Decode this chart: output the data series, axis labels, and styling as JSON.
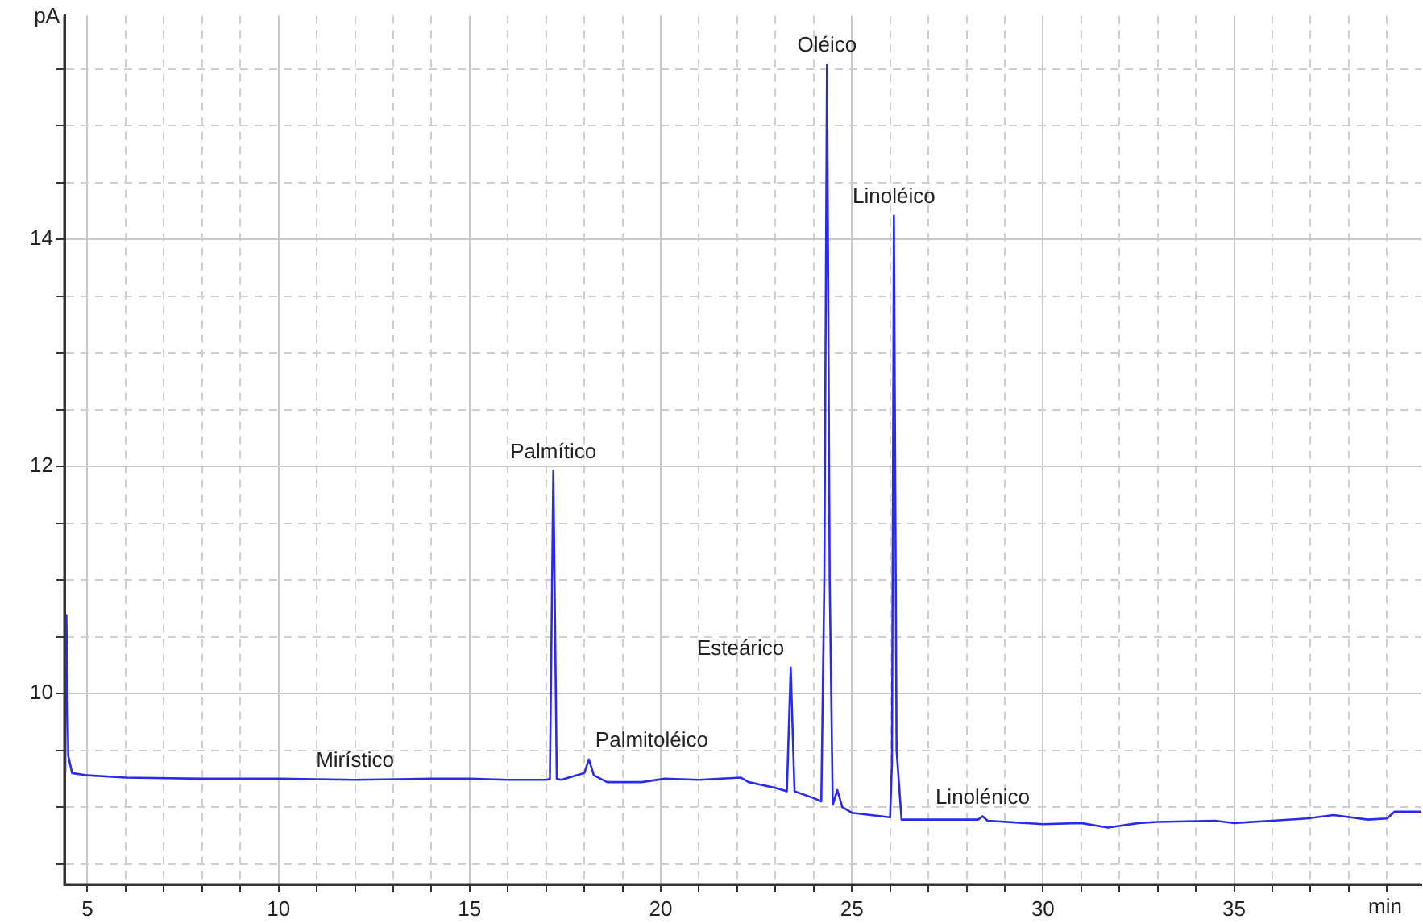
{
  "chart_data": {
    "type": "line",
    "xlabel": "min",
    "ylabel": "pA",
    "xlim": [
      4.4,
      39.9
    ],
    "ylim": [
      8.32,
      15.97
    ],
    "xticks": [
      5,
      {
        "value": 6,
        "label": null
      },
      {
        "value": 7,
        "label": null
      },
      {
        "value": 8,
        "label": null
      },
      {
        "value": 9,
        "label": null
      },
      10,
      {
        "value": 11,
        "label": null
      },
      {
        "value": 12,
        "label": null
      },
      {
        "value": 13,
        "label": null
      },
      {
        "value": 14,
        "label": null
      },
      15,
      {
        "value": 16,
        "label": null
      },
      {
        "value": 17,
        "label": null
      },
      {
        "value": 18,
        "label": null
      },
      {
        "value": 19,
        "label": null
      },
      20,
      {
        "value": 21,
        "label": null
      },
      {
        "value": 22,
        "label": null
      },
      {
        "value": 23,
        "label": null
      },
      {
        "value": 24,
        "label": null
      },
      25,
      {
        "value": 26,
        "label": null
      },
      {
        "value": 27,
        "label": null
      },
      {
        "value": 28,
        "label": null
      },
      {
        "value": 29,
        "label": null
      },
      30,
      {
        "value": 31,
        "label": null
      },
      {
        "value": 32,
        "label": null
      },
      {
        "value": 33,
        "label": null
      },
      {
        "value": 34,
        "label": null
      },
      35,
      {
        "value": 36,
        "label": null
      },
      {
        "value": 37,
        "label": null
      },
      {
        "value": 38,
        "label": null
      },
      {
        "value": 39,
        "label": null
      }
    ],
    "yticks": [
      {
        "value": 8.5,
        "label": null
      },
      {
        "value": 9,
        "label": null
      },
      {
        "value": 9.5,
        "label": null
      },
      10,
      {
        "value": 10.5,
        "label": null
      },
      {
        "value": 11,
        "label": null
      },
      {
        "value": 11.5,
        "label": null
      },
      12,
      {
        "value": 12.5,
        "label": null
      },
      {
        "value": 13,
        "label": null
      },
      {
        "value": 13.5,
        "label": null
      },
      14,
      {
        "value": 14.5,
        "label": null
      },
      {
        "value": 15,
        "label": null
      },
      {
        "value": 15.5,
        "label": null
      }
    ],
    "grid": true,
    "legend": false,
    "marker": "none",
    "line_style": "solid",
    "series": [
      {
        "color": "#2a2aee",
        "x": [
          4.42,
          4.45,
          4.5,
          4.6,
          5,
          6,
          8,
          10,
          12,
          14,
          15,
          16,
          17,
          17.1,
          17.19,
          17.28,
          17.4,
          18,
          18.12,
          18.25,
          18.6,
          19.5,
          20.1,
          21,
          22.09,
          22.3,
          23,
          23.3,
          23.4,
          23.5,
          24,
          24.2,
          24.28,
          24.35,
          24.42,
          24.5,
          24.62,
          24.75,
          25,
          26,
          26.05,
          26.1,
          26.17,
          26.3,
          27,
          28.3,
          28.42,
          28.55,
          30,
          31,
          31.7,
          32.5,
          33,
          34.5,
          35,
          36,
          36.9,
          37.6,
          38.5,
          39,
          39.2,
          39.9
        ],
        "values": [
          9.3,
          10.69,
          9.45,
          9.3,
          9.28,
          9.26,
          9.25,
          9.25,
          9.24,
          9.25,
          9.25,
          9.24,
          9.24,
          9.25,
          11.96,
          9.25,
          9.24,
          9.3,
          9.42,
          9.28,
          9.22,
          9.22,
          9.25,
          9.24,
          9.26,
          9.22,
          9.17,
          9.14,
          10.23,
          9.14,
          9.08,
          9.05,
          11,
          15.54,
          11,
          9.02,
          9.15,
          9.0,
          8.95,
          8.91,
          9.4,
          14.21,
          9.5,
          8.89,
          8.89,
          8.89,
          8.92,
          8.88,
          8.85,
          8.86,
          8.82,
          8.86,
          8.87,
          8.88,
          8.86,
          8.88,
          8.9,
          8.93,
          8.89,
          8.9,
          8.96,
          8.96
        ]
      }
    ],
    "annotations": [
      {
        "text": "Mirístico",
        "x": 12,
        "y": 9.24
      },
      {
        "text": "Palmítico",
        "x": 17.19,
        "y": 11.96
      },
      {
        "text": "Palmitoléico",
        "x": 18.12,
        "y": 9.42
      },
      {
        "text": "Esteárico",
        "x": 23.4,
        "y": 10.23
      },
      {
        "text": "Oléico",
        "x": 24.35,
        "y": 15.54
      },
      {
        "text": "Linoléico",
        "x": 26.1,
        "y": 14.21
      },
      {
        "text": "Linolénico",
        "x": 28.42,
        "y": 8.92
      }
    ]
  }
}
